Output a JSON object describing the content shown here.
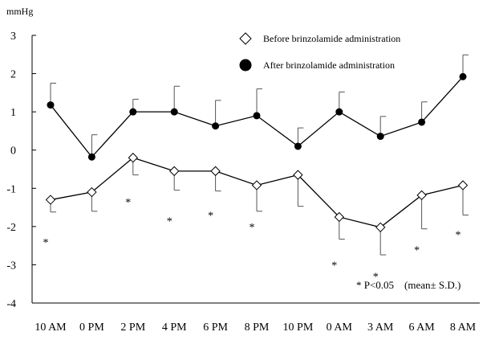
{
  "chart_data": {
    "type": "line",
    "ylabel": "mmHg",
    "ylim": [
      -4,
      3
    ],
    "yticks": [
      "3",
      "2",
      "1",
      "0",
      "-1",
      "-2",
      "-3",
      "-4"
    ],
    "categories": [
      "10 AM",
      "0 PM",
      "2 PM",
      "4 PM",
      "6 PM",
      "8 PM",
      "10 PM",
      "0 AM",
      "3 AM",
      "6 AM",
      "8 AM"
    ],
    "grid": false,
    "legend_position": "top-right",
    "series": [
      {
        "name": "Before brinzolamide administration",
        "marker": "diamond-open",
        "values": [
          -1.3,
          -1.1,
          -0.2,
          -0.55,
          -0.55,
          -0.92,
          -0.65,
          -1.75,
          -2.02,
          -1.18,
          -0.92
        ],
        "sd": [
          0.32,
          0.5,
          0.45,
          0.5,
          0.52,
          0.68,
          0.82,
          0.58,
          0.72,
          0.88,
          0.78
        ],
        "sd_direction": "down"
      },
      {
        "name": "After brinzolamide administration",
        "marker": "circle-filled",
        "values": [
          1.18,
          -0.18,
          1.0,
          1.0,
          0.63,
          0.9,
          0.1,
          1.0,
          0.36,
          0.73,
          1.92
        ],
        "sd": [
          0.57,
          0.58,
          0.33,
          0.67,
          0.67,
          0.7,
          0.48,
          0.52,
          0.52,
          0.53,
          0.57
        ],
        "sd_direction": "up"
      }
    ],
    "significance_marks": [
      {
        "category": "10 AM",
        "value": -2.4,
        "label": "*"
      },
      {
        "category": "2 PM",
        "value": -1.35,
        "label": "*"
      },
      {
        "category": "4 PM",
        "value": -1.85,
        "label": "*"
      },
      {
        "category": "6 PM",
        "value": -1.7,
        "label": "*"
      },
      {
        "category": "8 PM",
        "value": -2.0,
        "label": "*"
      },
      {
        "category": "0 AM",
        "value": -3.0,
        "label": "*"
      },
      {
        "category": "3 AM",
        "value": -3.3,
        "label": "*"
      },
      {
        "category": "6 AM",
        "value": -2.6,
        "label": "*"
      },
      {
        "category": "8 AM",
        "value": -2.2,
        "label": "*"
      }
    ],
    "footnote": "* P<0.05    (mean± S.D.)"
  }
}
